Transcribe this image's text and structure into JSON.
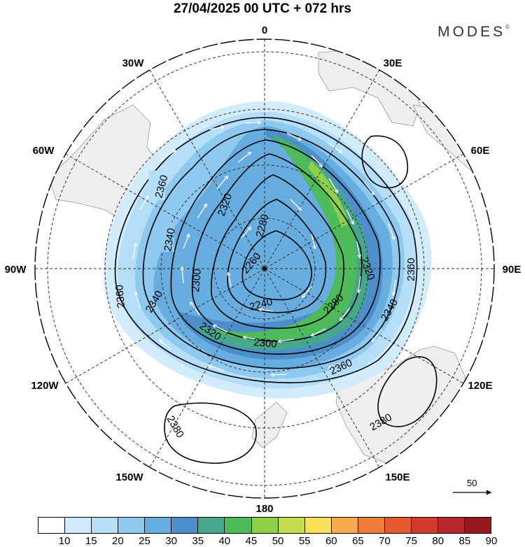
{
  "title": "27/04/2025  00 UTC  + 072 hrs",
  "brand": "MODES",
  "brand_mark": "©",
  "map": {
    "projection": "polar-stereographic-north",
    "meridian_labels": [
      "0",
      "30E",
      "60E",
      "90E",
      "120E",
      "150E",
      "180",
      "150W",
      "120W",
      "90W",
      "60W",
      "30W"
    ],
    "contour_labels": [
      "2380",
      "2360",
      "2340",
      "2320",
      "2300",
      "2280",
      "2260",
      "2240"
    ],
    "field": "wind speed shaded, geopotential height contoured, wind vectors",
    "colors": {
      "land": "#efefef",
      "coast": "#9a9a9a",
      "contour": "#000000",
      "vectors": "#ffffff"
    }
  },
  "colorbar": {
    "labels": [
      "10",
      "15",
      "20",
      "25",
      "30",
      "35",
      "40",
      "45",
      "50",
      "55",
      "60",
      "65",
      "70",
      "75",
      "80",
      "85",
      "90"
    ],
    "colors": [
      "#ffffff",
      "#d2ecfb",
      "#b5dff8",
      "#8ec9f0",
      "#67addf",
      "#4d8fca",
      "#46a88a",
      "#4dbb5a",
      "#8fd048",
      "#c7dd50",
      "#f9e05a",
      "#f6ac4c",
      "#ee7d37",
      "#e45a2f",
      "#d23a2c",
      "#b9262b",
      "#951a1f"
    ]
  },
  "vector_key": {
    "label": "50"
  }
}
